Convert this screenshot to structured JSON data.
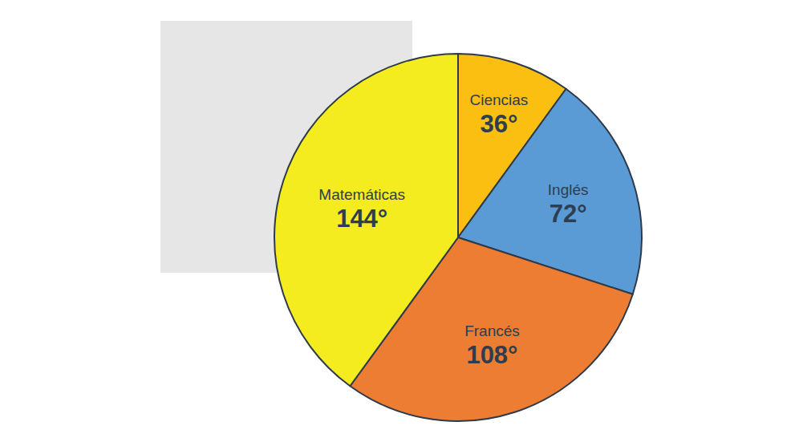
{
  "chart_data": {
    "type": "pie",
    "categories": [
      "Ciencias",
      "Inglés",
      "Francés",
      "Matemáticas"
    ],
    "values": [
      36,
      72,
      108,
      144
    ],
    "value_labels": [
      "36°",
      "72°",
      "108°",
      "144°"
    ],
    "colors": [
      "#fbbf12",
      "#5b9bd5",
      "#ed7d32",
      "#f5ec20"
    ],
    "data_labels": true
  }
}
